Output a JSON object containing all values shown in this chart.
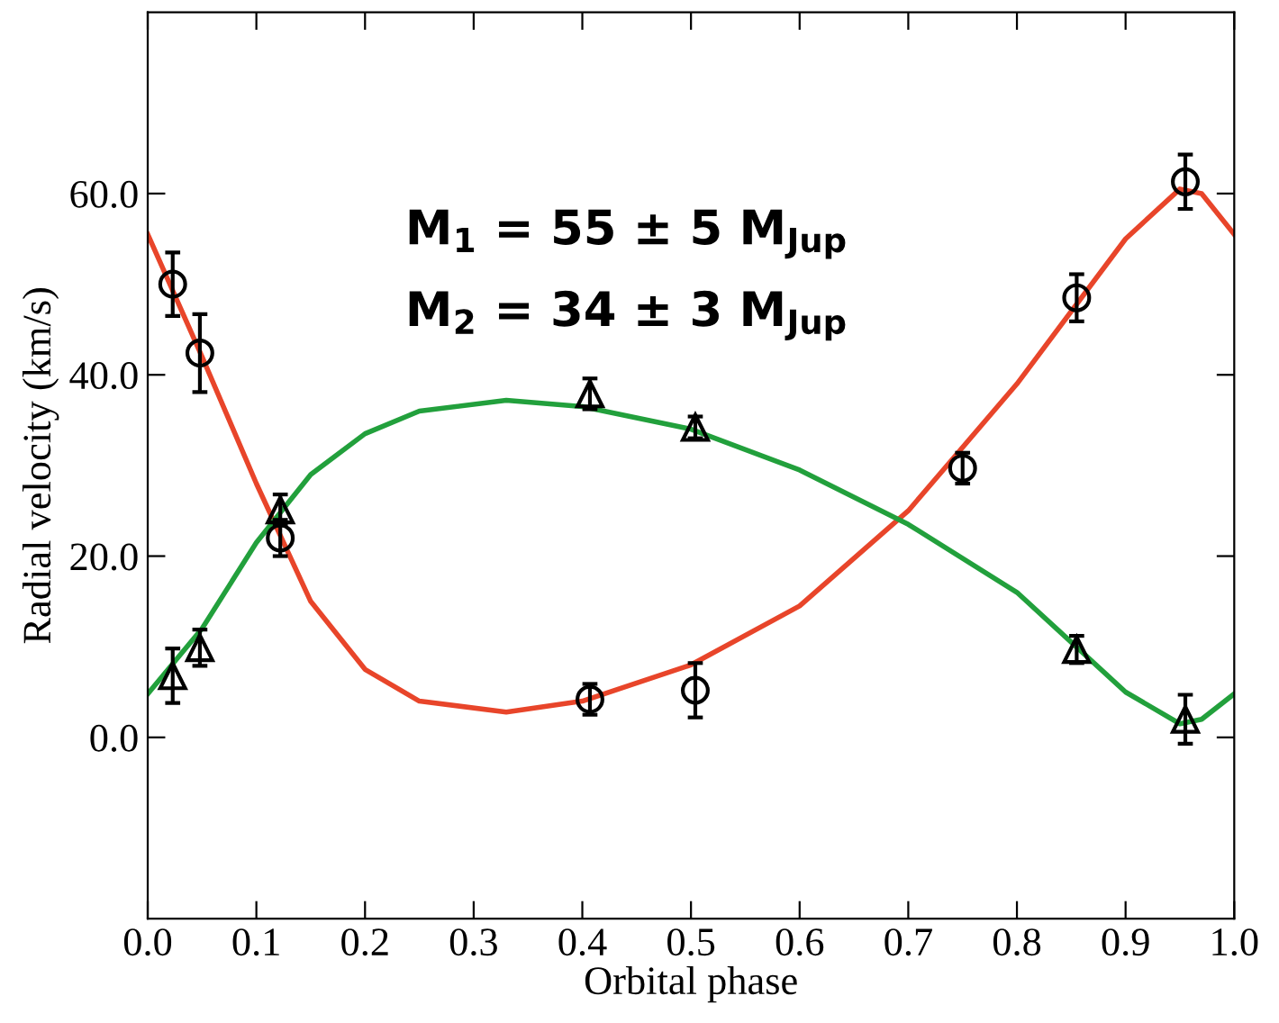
{
  "chart_data": {
    "type": "scatter",
    "xlabel": "Orbital phase",
    "ylabel": "Radial velocity (km/s)",
    "annotations": [
      "M$_{1}$ = 55 ± 5 M$_{Jup}$",
      "M$_{2}$ = 34 ± 3 M$_{Jup}$"
    ],
    "xlim": [
      0.0,
      1.0
    ],
    "ylim": [
      -20,
      80
    ],
    "xticks": [
      {
        "value": 0,
        "label": "0.0"
      },
      {
        "value": 0.1,
        "label": "0.1"
      },
      {
        "value": 0.2,
        "label": "0.2"
      },
      {
        "value": 0.3,
        "label": "0.3"
      },
      {
        "value": 0.4,
        "label": "0.4"
      },
      {
        "value": 0.5,
        "label": "0.5"
      },
      {
        "value": 0.6,
        "label": "0.6"
      },
      {
        "value": 0.7,
        "label": "0.7"
      },
      {
        "value": 0.8,
        "label": "0.8"
      },
      {
        "value": 0.9,
        "label": "0.9"
      },
      {
        "value": 1,
        "label": "1.0"
      }
    ],
    "yticks": [
      {
        "value": 0,
        "label": "0.0"
      },
      {
        "value": 20,
        "label": "20.0"
      },
      {
        "value": 40,
        "label": "40.0"
      },
      {
        "value": 60,
        "label": "60.0"
      }
    ],
    "grid": false,
    "legend": false,
    "series": [
      {
        "type": "line",
        "color": "#e8452a",
        "marker": "none",
        "x": [
          0,
          0.05,
          0.1,
          0.15,
          0.2,
          0.25,
          0.33,
          0.4,
          0.5,
          0.6,
          0.7,
          0.8,
          0.85,
          0.9,
          0.95,
          0.97,
          1.0
        ],
        "values": [
          55.5,
          42,
          28,
          15,
          7.5,
          4,
          2.8,
          4,
          8,
          14.5,
          25,
          39,
          47,
          55,
          60.5,
          60,
          55.5
        ]
      },
      {
        "type": "line",
        "color": "#22a03c",
        "marker": "none",
        "x": [
          0,
          0.05,
          0.1,
          0.15,
          0.2,
          0.25,
          0.33,
          0.4,
          0.5,
          0.6,
          0.7,
          0.8,
          0.85,
          0.9,
          0.95,
          0.97,
          1.0
        ],
        "values": [
          4.8,
          12,
          21.5,
          29,
          33.5,
          36,
          37.2,
          36.5,
          34,
          29.5,
          23.5,
          16,
          10.5,
          5,
          1.5,
          2,
          4.8
        ]
      },
      {
        "color": "#000000",
        "marker": "circle",
        "x": [
          0.023,
          0.048,
          0.122,
          0.407,
          0.504,
          0.75,
          0.855,
          0.955
        ],
        "values": [
          50.0,
          42.4,
          22.0,
          4.2,
          5.2,
          29.7,
          48.5,
          61.3
        ],
        "errors": [
          3.5,
          4.3,
          2,
          1.7,
          3,
          1.7,
          2.6,
          3
        ]
      },
      {
        "color": "#000000",
        "marker": "triangle",
        "x": [
          0.023,
          0.048,
          0.122,
          0.407,
          0.504,
          0.855,
          0.955
        ],
        "values": [
          6.8,
          9.9,
          25.1,
          37.9,
          34.2,
          9.7,
          2.0
        ],
        "errors": [
          3,
          2,
          1.7,
          1.7,
          1.2,
          1.5,
          2.7
        ]
      }
    ]
  }
}
